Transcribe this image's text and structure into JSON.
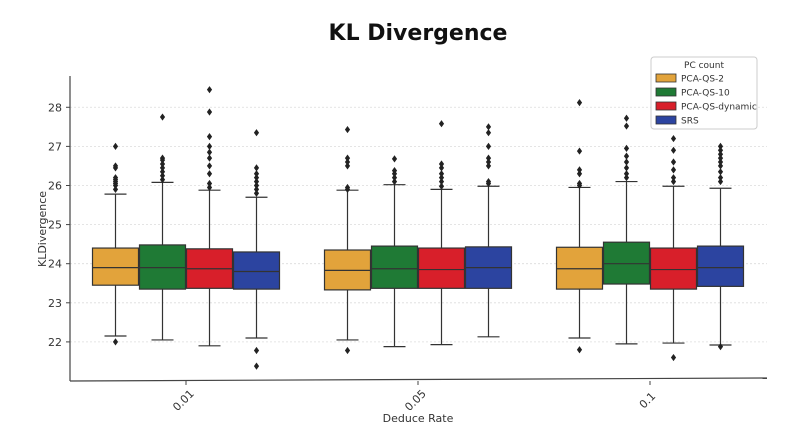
{
  "chart_data": {
    "type": "boxplot",
    "title": "KL Divergence",
    "xlabel": "Deduce Rate",
    "ylabel": "KLDivergence",
    "ylim": [
      21.0,
      28.8
    ],
    "yticks": [
      22,
      23,
      24,
      25,
      26,
      27,
      28
    ],
    "grid": "horizontal",
    "legend": {
      "title": "PC count",
      "position": "top-right"
    },
    "categories": [
      "0.01",
      "0.05",
      "0.1"
    ],
    "series": [
      {
        "name": "PCA-QS-2",
        "color": "#e2a33b",
        "boxes": [
          {
            "whislo": 22.15,
            "q1": 23.45,
            "med": 23.9,
            "q3": 24.4,
            "whishi": 25.78,
            "fliers": [
              22.0,
              25.9,
              26.0,
              26.05,
              26.1,
              26.15,
              26.2,
              26.45,
              26.5,
              27.0
            ]
          },
          {
            "whislo": 22.05,
            "q1": 23.33,
            "med": 23.83,
            "q3": 24.35,
            "whishi": 25.88,
            "fliers": [
              21.78,
              25.9,
              25.95,
              26.5,
              26.6,
              26.7,
              27.43
            ]
          },
          {
            "whislo": 22.1,
            "q1": 23.35,
            "med": 23.87,
            "q3": 24.42,
            "whishi": 25.95,
            "fliers": [
              21.8,
              26.0,
              26.05,
              26.3,
              26.4,
              26.88,
              28.12
            ]
          }
        ]
      },
      {
        "name": "PCA-QS-10",
        "color": "#1f7a35",
        "boxes": [
          {
            "whislo": 22.05,
            "q1": 23.35,
            "med": 23.9,
            "q3": 24.48,
            "whishi": 26.08,
            "fliers": [
              26.15,
              26.25,
              26.35,
              26.45,
              26.55,
              26.65,
              26.7,
              27.75
            ]
          },
          {
            "whislo": 21.88,
            "q1": 23.37,
            "med": 23.87,
            "q3": 24.45,
            "whishi": 26.02,
            "fliers": [
              26.1,
              26.2,
              26.3,
              26.38,
              26.68
            ]
          },
          {
            "whislo": 21.95,
            "q1": 23.48,
            "med": 24.0,
            "q3": 24.55,
            "whishi": 26.1,
            "fliers": [
              26.2,
              26.3,
              26.45,
              26.6,
              26.75,
              26.95,
              27.52,
              27.72
            ]
          }
        ]
      },
      {
        "name": "PCA-QS-dynamic",
        "color": "#d81f2a",
        "boxes": [
          {
            "whislo": 21.9,
            "q1": 23.37,
            "med": 23.87,
            "q3": 24.38,
            "whishi": 25.88,
            "fliers": [
              25.95,
              26.05,
              26.3,
              26.5,
              26.7,
              26.85,
              27.0,
              27.25,
              27.88,
              28.45
            ]
          },
          {
            "whislo": 21.93,
            "q1": 23.37,
            "med": 23.85,
            "q3": 24.4,
            "whishi": 25.9,
            "fliers": [
              25.98,
              26.1,
              26.2,
              26.3,
              26.45,
              26.55,
              27.58
            ]
          },
          {
            "whislo": 21.97,
            "q1": 23.35,
            "med": 23.85,
            "q3": 24.4,
            "whishi": 25.98,
            "fliers": [
              21.6,
              26.1,
              26.2,
              26.4,
              26.6,
              26.9,
              27.2
            ]
          }
        ]
      },
      {
        "name": "SRS",
        "color": "#2c44a0",
        "boxes": [
          {
            "whislo": 22.1,
            "q1": 23.35,
            "med": 23.8,
            "q3": 24.3,
            "whishi": 25.7,
            "fliers": [
              21.38,
              21.78,
              25.8,
              25.9,
              26.0,
              26.1,
              26.2,
              26.3,
              26.45,
              27.35
            ]
          },
          {
            "whislo": 22.13,
            "q1": 23.37,
            "med": 23.9,
            "q3": 24.43,
            "whishi": 25.98,
            "fliers": [
              26.05,
              26.1,
              26.5,
              26.6,
              26.7,
              27.0,
              27.35,
              27.5
            ]
          },
          {
            "whislo": 21.92,
            "q1": 23.42,
            "med": 23.9,
            "q3": 24.45,
            "whishi": 25.93,
            "fliers": [
              21.88,
              26.1,
              26.2,
              26.35,
              26.5,
              26.6,
              26.7,
              26.8,
              26.9,
              27.0
            ]
          }
        ]
      }
    ]
  }
}
